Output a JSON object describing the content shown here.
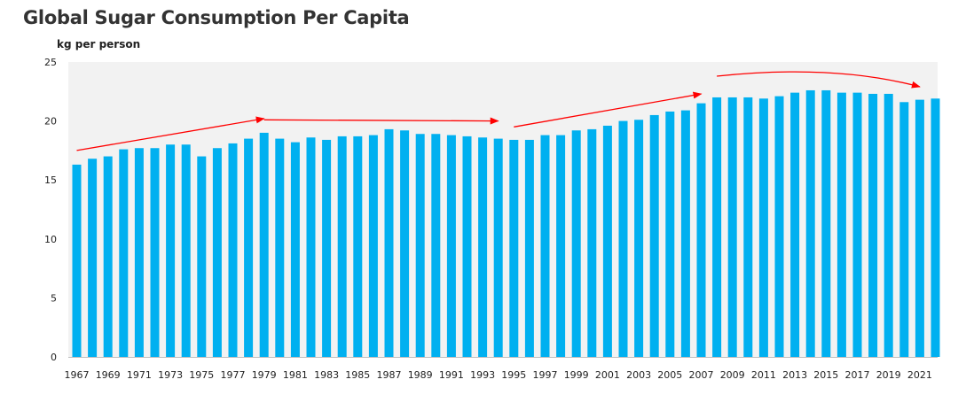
{
  "chart_data": {
    "type": "bar",
    "title": "Global Sugar Consumption Per Capita",
    "ylabel": "kg per person",
    "xlabel": "",
    "ylim": [
      0,
      25
    ],
    "yticks": [
      0,
      5,
      10,
      15,
      20,
      25
    ],
    "grid": false,
    "colors": {
      "bar": "#00b0f0",
      "plot_background": "#f2f2f2",
      "annotation_arrow": "#ff0000"
    },
    "categories": [
      "1967",
      "1968",
      "1969",
      "1970",
      "1971",
      "1972",
      "1973",
      "1974",
      "1975",
      "1976",
      "1977",
      "1978",
      "1979",
      "1980",
      "1981",
      "1982",
      "1983",
      "1984",
      "1985",
      "1986",
      "1987",
      "1988",
      "1989",
      "1990",
      "1991",
      "1992",
      "1993",
      "1994",
      "1995",
      "1996",
      "1997",
      "1998",
      "1999",
      "2000",
      "2001",
      "2002",
      "2003",
      "2004",
      "2005",
      "2006",
      "2007",
      "2008",
      "2009",
      "2010",
      "2011",
      "2012",
      "2013",
      "2014",
      "2015",
      "2016",
      "2017",
      "2018",
      "2019",
      "2020",
      "2021",
      "2022"
    ],
    "tick_labels": [
      "1967",
      "1969",
      "1971",
      "1973",
      "1975",
      "1977",
      "1979",
      "1981",
      "1983",
      "1985",
      "1987",
      "1989",
      "1991",
      "1993",
      "1995",
      "1997",
      "1999",
      "2001",
      "2003",
      "2005",
      "2007",
      "2009",
      "2011",
      "2013",
      "2015",
      "2017",
      "2019",
      "2021"
    ],
    "values": [
      16.3,
      16.8,
      17.0,
      17.6,
      17.7,
      17.7,
      18.0,
      18.0,
      17.0,
      17.7,
      18.1,
      18.5,
      19.0,
      18.5,
      18.2,
      18.6,
      18.4,
      18.7,
      18.7,
      18.8,
      19.3,
      19.2,
      18.9,
      18.9,
      18.8,
      18.7,
      18.6,
      18.5,
      18.4,
      18.4,
      18.8,
      18.8,
      19.2,
      19.3,
      19.6,
      20.0,
      20.1,
      20.5,
      20.8,
      20.9,
      21.5,
      22.0,
      22.0,
      22.0,
      21.9,
      22.1,
      22.4,
      22.6,
      22.6,
      22.4,
      22.4,
      22.3,
      22.3,
      21.6,
      21.8,
      21.9
    ],
    "annotations": [
      {
        "type": "arrow",
        "from": {
          "x": "1967",
          "y": 17.5
        },
        "to": {
          "x": "1979",
          "y": 20.2
        }
      },
      {
        "type": "arrow",
        "from": {
          "x": "1979",
          "y": 20.1
        },
        "to": {
          "x": "1994",
          "y": 20.0
        }
      },
      {
        "type": "arrow",
        "from": {
          "x": "1995",
          "y": 19.5
        },
        "to": {
          "x": "2007",
          "y": 22.3
        }
      },
      {
        "type": "curved-arrow",
        "from": {
          "x": "2008",
          "y": 23.8
        },
        "peak": {
          "x": "2015",
          "y": 24.1
        },
        "to": {
          "x": "2021",
          "y": 22.9
        }
      }
    ]
  }
}
